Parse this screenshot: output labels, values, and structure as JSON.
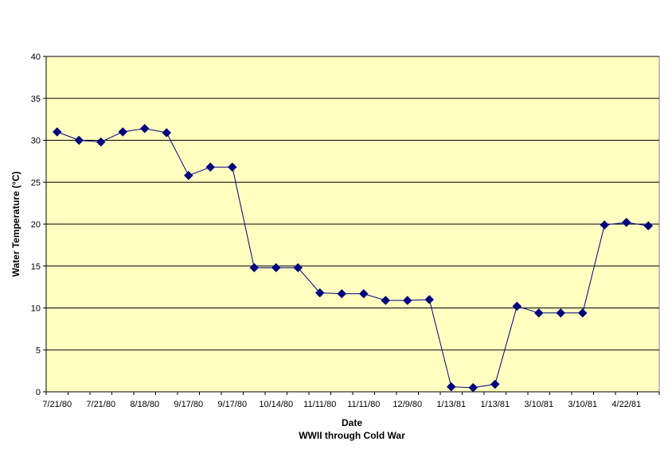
{
  "chart_data": {
    "type": "line",
    "title": "",
    "xlabel": "Date",
    "xlabel2": "WWII through Cold War",
    "ylabel": "Water Temperature (°C)",
    "ylim": [
      0,
      40
    ],
    "yticks": [
      0,
      5,
      10,
      15,
      20,
      25,
      30,
      35,
      40
    ],
    "grid": true,
    "legend": "none",
    "colors": {
      "plot_background": "#FFFFC0",
      "line": "#000080",
      "marker": "#000080",
      "gridline": "#000000"
    },
    "x_tick_labels": [
      "7/21/80",
      "7/21/80",
      "8/18/80",
      "9/17/80",
      "9/17/80",
      "10/14/80",
      "11/11/80",
      "11/11/80",
      "12/9/80",
      "1/13/81",
      "1/13/81",
      "3/10/81",
      "3/10/81",
      "4/22/81"
    ],
    "series": [
      {
        "values": [
          31.0,
          30.0,
          29.8,
          31.0,
          31.4,
          30.9,
          25.8,
          26.8,
          26.8,
          14.8,
          14.8,
          14.8,
          11.8,
          11.7,
          11.7,
          10.9,
          10.9,
          11.0,
          0.6,
          0.5,
          0.9,
          10.2,
          9.4,
          9.4,
          9.4,
          19.9,
          20.2,
          19.8
        ]
      }
    ]
  }
}
